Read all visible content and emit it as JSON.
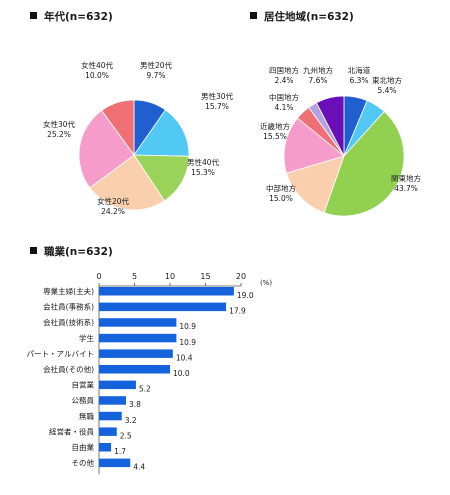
{
  "age_section": {
    "title": "年代(n=632)"
  },
  "region_section": {
    "title": "居住地域(n=632)"
  },
  "job_section": {
    "title": "職業(n=632)"
  },
  "chart_data": [
    {
      "type": "pie",
      "title": "年代(n=632)",
      "slices": [
        {
          "label": "男性20代",
          "value": 9.7,
          "value_label": "9.7%",
          "color": "#1f5fd0"
        },
        {
          "label": "男性30代",
          "value": 15.7,
          "value_label": "15.7%",
          "color": "#52c8f5"
        },
        {
          "label": "男性40代",
          "value": 15.3,
          "value_label": "15.3%",
          "color": "#9bd35a"
        },
        {
          "label": "女性20代",
          "value": 24.2,
          "value_label": "24.2%",
          "color": "#f9cfae"
        },
        {
          "label": "女性30代",
          "value": 25.2,
          "value_label": "25.2%",
          "color": "#f59ccb"
        },
        {
          "label": "女性40代",
          "value": 10.0,
          "value_label": "10.0%",
          "color": "#ef7074"
        }
      ]
    },
    {
      "type": "pie",
      "title": "居住地域(n=632)",
      "slices": [
        {
          "label": "北海道",
          "value": 6.3,
          "value_label": "6.3%",
          "color": "#1f5fd0"
        },
        {
          "label": "東北地方",
          "value": 5.4,
          "value_label": "5.4%",
          "color": "#52c8f5"
        },
        {
          "label": "関東地方",
          "value": 43.7,
          "value_label": "43.7%",
          "color": "#92d050"
        },
        {
          "label": "中部地方",
          "value": 15.0,
          "value_label": "15.0%",
          "color": "#f9cfae"
        },
        {
          "label": "近畿地方",
          "value": 15.5,
          "value_label": "15.5%",
          "color": "#f59ccb"
        },
        {
          "label": "中国地方",
          "value": 4.1,
          "value_label": "4.1%",
          "color": "#ef7074"
        },
        {
          "label": "四国地方",
          "value": 2.4,
          "value_label": "2.4%",
          "color": "#b4a3e0"
        },
        {
          "label": "九州地方",
          "value": 7.6,
          "value_label": "7.6%",
          "color": "#6a0fb8"
        }
      ]
    },
    {
      "type": "bar",
      "orientation": "horizontal",
      "title": "職業(n=632)",
      "unit": "(%)",
      "xlim": [
        0,
        20
      ],
      "xticks": [
        0,
        5,
        10,
        15,
        20
      ],
      "bar_color": "#1463dc",
      "categories": [
        "専業主婦(主夫)",
        "会社員(事務系)",
        "会社員(技術系)",
        "学生",
        "パート・アルバイト",
        "会社員(その他)",
        "自営業",
        "公務員",
        "無職",
        "経営者・役員",
        "自由業",
        "その他"
      ],
      "values": [
        19.0,
        17.9,
        10.9,
        10.9,
        10.4,
        10.0,
        5.2,
        3.8,
        3.2,
        2.5,
        1.7,
        4.4
      ],
      "value_labels": [
        "19.0",
        "17.9",
        "10.9",
        "10.9",
        "10.4",
        "10.0",
        "5.2",
        "3.8",
        "3.2",
        "2.5",
        "1.7",
        "4.4"
      ]
    }
  ]
}
